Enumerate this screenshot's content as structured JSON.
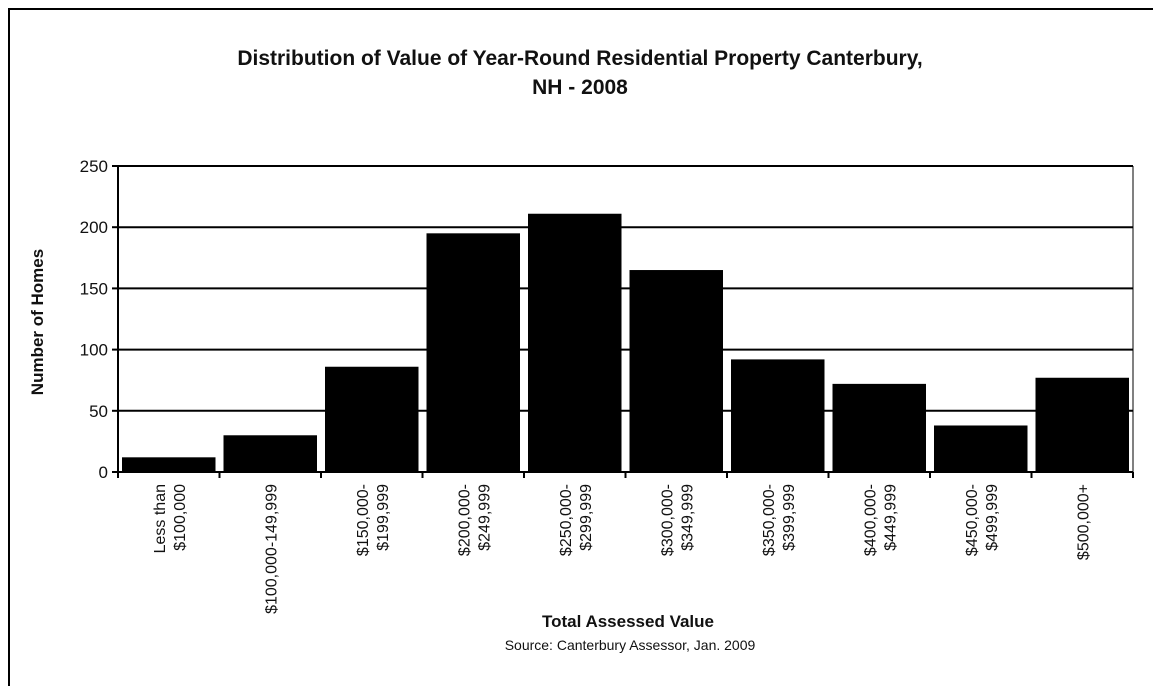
{
  "chart_data": {
    "type": "bar",
    "title_line1": "Distribution of Value of Year-Round Residential Property Canterbury,",
    "title_line2": "NH - 2008",
    "xlabel": "Total Assessed Value",
    "ylabel": "Number of Homes",
    "source": "Source: Canterbury Assessor, Jan. 2009",
    "ylim": [
      0,
      250
    ],
    "yticks": [
      0,
      50,
      100,
      150,
      200,
      250
    ],
    "grid": true,
    "categories": [
      [
        "Less than",
        "$100,000"
      ],
      [
        "$100,000-149,999"
      ],
      [
        "$150,000-",
        "$199,999"
      ],
      [
        "$200,000-",
        "$249,999"
      ],
      [
        "$250,000-",
        "$299,999"
      ],
      [
        "$300,000-",
        "$349,999"
      ],
      [
        "$350,000-",
        "$399,999"
      ],
      [
        "$400,000-",
        "$449,999"
      ],
      [
        "$450,000-",
        "$499,999"
      ],
      [
        "$500,000+"
      ]
    ],
    "values": [
      12,
      30,
      86,
      195,
      211,
      165,
      92,
      72,
      38,
      77
    ],
    "bar_color": "#000000"
  }
}
